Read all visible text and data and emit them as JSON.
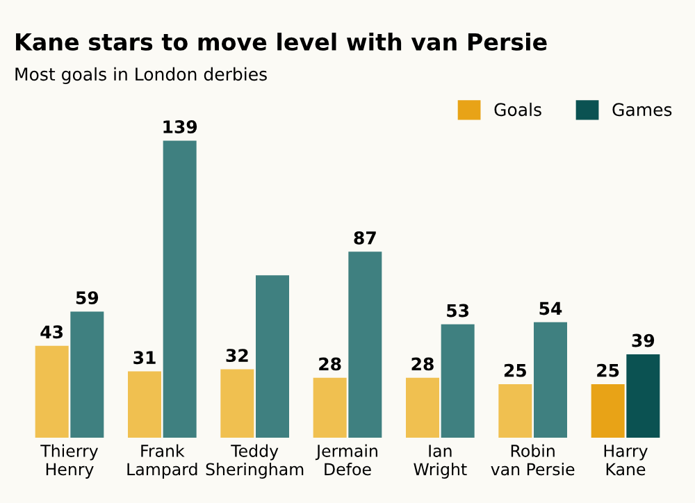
{
  "chart_data": {
    "type": "bar",
    "title": "Kane stars to move level with van Persie",
    "subtitle": "Most goals in London derbies",
    "categories": [
      "Thierry\nHenry",
      "Frank\nLampard",
      "Teddy\nSheringham",
      "Jermain\nDefoe",
      "Ian\nWright",
      "Robin\nvan Persie",
      "Harry\nKane"
    ],
    "series": [
      {
        "name": "Goals",
        "color": "#e8a317",
        "colors": [
          "#f0c050",
          "#f0c050",
          "#f0c050",
          "#f0c050",
          "#f0c050",
          "#f0c050",
          "#e8a317"
        ],
        "values": [
          43,
          31,
          32,
          28,
          28,
          25,
          25
        ],
        "value_labels": [
          "43",
          "31",
          "32",
          "28",
          "28",
          "25",
          "25"
        ]
      },
      {
        "name": "Games",
        "color": "#0b5252",
        "colors": [
          "#3f8080",
          "#3f8080",
          "#3f8080",
          "#3f8080",
          "#3f8080",
          "#3f8080",
          "#0b5252"
        ],
        "values": [
          59,
          139,
          76,
          87,
          53,
          54,
          39
        ],
        "value_labels": [
          "59",
          "139",
          null,
          "87",
          "53",
          "54",
          "39"
        ]
      }
    ],
    "legend": "top right",
    "grid": false
  }
}
